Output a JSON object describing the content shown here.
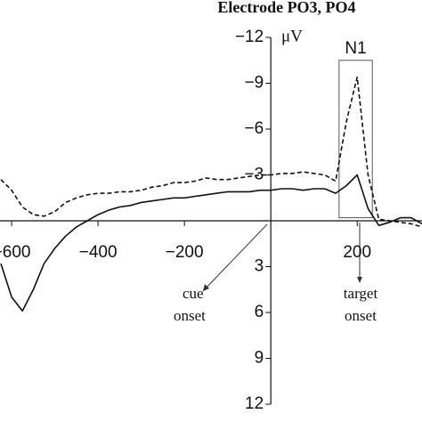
{
  "chart_data": {
    "type": "line",
    "title": "Electrode PO3, PO4",
    "ylabel": "μV",
    "x": [
      -625,
      -600,
      -575,
      -550,
      -525,
      -500,
      -475,
      -450,
      -425,
      -400,
      -375,
      -350,
      -325,
      -300,
      -275,
      -250,
      -225,
      -200,
      -175,
      -150,
      -125,
      -100,
      -75,
      -50,
      -25,
      0,
      25,
      50,
      75,
      100,
      125,
      150,
      175,
      200,
      225,
      250,
      275,
      300,
      325,
      350
    ],
    "series": [
      {
        "name": "solid",
        "color": "#111111",
        "dash": false,
        "values": [
          2.8,
          5.0,
          5.9,
          4.5,
          2.8,
          1.8,
          1.0,
          0.4,
          0.0,
          -0.4,
          -0.7,
          -0.9,
          -1.0,
          -1.2,
          -1.3,
          -1.4,
          -1.5,
          -1.5,
          -1.6,
          -1.7,
          -1.8,
          -1.9,
          -1.9,
          -1.9,
          -2.0,
          -2.0,
          -2.1,
          -2.1,
          -2.0,
          -2.1,
          -2.1,
          -1.8,
          -2.3,
          -3.0,
          -0.8,
          0.3,
          0.1,
          -0.2,
          -0.2,
          0.2
        ]
      },
      {
        "name": "dashed",
        "color": "#111111",
        "dash": true,
        "values": [
          -2.7,
          -2.0,
          -0.9,
          -0.4,
          -0.3,
          -0.6,
          -1.2,
          -1.5,
          -1.7,
          -1.8,
          -1.8,
          -1.9,
          -1.9,
          -2.0,
          -2.2,
          -2.3,
          -2.5,
          -2.5,
          -2.6,
          -2.8,
          -2.7,
          -2.7,
          -2.8,
          -2.9,
          -3.0,
          -3.0,
          -3.1,
          -3.1,
          -3.2,
          -3.1,
          -3.0,
          -2.6,
          -6.5,
          -9.4,
          -3.0,
          -0.1,
          0.0,
          0.1,
          0.2,
          0.4
        ]
      }
    ],
    "xlim": [
      -627,
      350
    ],
    "ylim": [
      -12,
      12
    ],
    "xticks": [
      {
        "value": -600,
        "label": "−600"
      },
      {
        "value": -400,
        "label": "−400"
      },
      {
        "value": -200,
        "label": "−200"
      },
      200
    ],
    "yticks": [
      {
        "value": -12,
        "label": "−12"
      },
      {
        "value": -9,
        "label": "−9"
      },
      {
        "value": -6,
        "label": "−6"
      },
      {
        "value": -3,
        "label": "−3"
      },
      3,
      6,
      9,
      12
    ],
    "box": {
      "text": "N1",
      "x": [
        158,
        235
      ],
      "y": [
        -10.5,
        -0.2
      ]
    },
    "annotations": [
      {
        "text": "cue",
        "text2": "onset"
      },
      {
        "text": "target",
        "text2": "onset"
      }
    ]
  }
}
